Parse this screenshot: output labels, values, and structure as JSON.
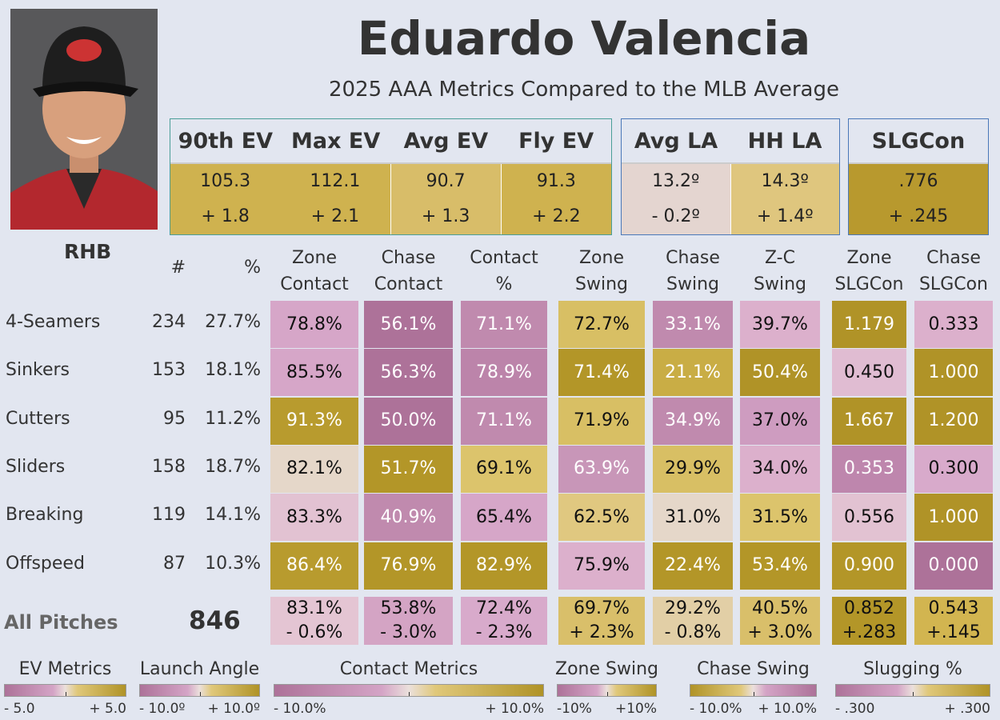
{
  "player": {
    "name": "Eduardo Valencia",
    "subtitle": "2025 AAA Metrics Compared to the MLB Average",
    "bats": "RHB"
  },
  "summary": {
    "ev": {
      "headers": [
        "90th EV",
        "Max EV",
        "Avg EV",
        "Fly EV"
      ],
      "values": [
        "105.3",
        "112.1",
        "90.7",
        "91.3"
      ],
      "diffs": [
        "+ 1.8",
        "+ 2.1",
        "+ 1.3",
        "+ 2.2"
      ],
      "colors": [
        "#cfb24f",
        "#cfb24f",
        "#d8bd69",
        "#cfb24f"
      ]
    },
    "la": {
      "headers": [
        "Avg LA",
        "HH LA"
      ],
      "values": [
        "13.2º",
        "14.3º"
      ],
      "diffs": [
        "- 0.2º",
        "+ 1.4º"
      ],
      "colors": [
        "#e4d5d0",
        "#dfc67e"
      ]
    },
    "slg": {
      "headers": [
        "SLGCon"
      ],
      "values": [
        ".776"
      ],
      "diffs": [
        "+ .245"
      ],
      "colors": [
        "#b8992e"
      ]
    }
  },
  "table": {
    "count_header": "#",
    "pct_header": "%",
    "columns": [
      [
        "Zone",
        "Contact"
      ],
      [
        "Chase",
        "Contact"
      ],
      [
        "Contact",
        "%"
      ],
      [
        "Zone",
        "Swing"
      ],
      [
        "Chase",
        "Swing"
      ],
      [
        "Z-C",
        "Swing"
      ],
      [
        "Zone",
        "SLGCon"
      ],
      [
        "Chase",
        "SLGCon"
      ]
    ],
    "rows": [
      {
        "pitch": "4-Seamers",
        "count": "234",
        "pct": "27.7%",
        "values": [
          "78.8%",
          "56.1%",
          "71.1%",
          "72.7%",
          "33.1%",
          "39.7%",
          "1.179",
          "0.333"
        ],
        "colors": [
          "#d6a6c8",
          "#ad7299",
          "#c08aae",
          "#d8bf64",
          "#c08aae",
          "#dcb0cc",
          "#b09327",
          "#dcb0cc"
        ]
      },
      {
        "pitch": "Sinkers",
        "count": "153",
        "pct": "18.1%",
        "values": [
          "85.5%",
          "56.3%",
          "78.9%",
          "71.4%",
          "21.1%",
          "50.4%",
          "0.450",
          "1.000"
        ],
        "colors": [
          "#d6a6c8",
          "#ad7299",
          "#bc84aa",
          "#b39628",
          "#c9ad45",
          "#b09327",
          "#e0bcd2",
          "#b09327"
        ]
      },
      {
        "pitch": "Cutters",
        "count": "95",
        "pct": "11.2%",
        "values": [
          "91.3%",
          "50.0%",
          "71.1%",
          "71.9%",
          "34.9%",
          "37.0%",
          "1.667",
          "1.200"
        ],
        "colors": [
          "#b89b2e",
          "#ad7299",
          "#c08aae",
          "#d8bf64",
          "#c08aae",
          "#ce9cc0",
          "#b09327",
          "#b09327"
        ]
      },
      {
        "pitch": "Sliders",
        "count": "158",
        "pct": "18.7%",
        "values": [
          "82.1%",
          "51.7%",
          "69.1%",
          "63.9%",
          "29.9%",
          "34.0%",
          "0.353",
          "0.300"
        ],
        "colors": [
          "#e5d7c9",
          "#b39628",
          "#dcc46c",
          "#c896b8",
          "#d8bf64",
          "#dcb0cc",
          "#be86ad",
          "#d8aacb"
        ]
      },
      {
        "pitch": "Breaking",
        "count": "119",
        "pct": "14.1%",
        "values": [
          "83.3%",
          "40.9%",
          "65.4%",
          "62.5%",
          "31.0%",
          "31.5%",
          "0.556",
          "1.000"
        ],
        "colors": [
          "#e2c2d2",
          "#c08aae",
          "#d6a6c8",
          "#e0c880",
          "#e5d7c9",
          "#dcc46c",
          "#e2c2d2",
          "#b09327"
        ]
      },
      {
        "pitch": "Offspeed",
        "count": "87",
        "pct": "10.3%",
        "values": [
          "86.4%",
          "76.9%",
          "82.9%",
          "75.9%",
          "22.4%",
          "53.4%",
          "0.900",
          "0.000"
        ],
        "colors": [
          "#b89b2e",
          "#b39628",
          "#b39628",
          "#dcb0cc",
          "#b39628",
          "#b39628",
          "#b39628",
          "#ad7299"
        ]
      }
    ],
    "total": {
      "label": "All Pitches",
      "count": "846",
      "values": [
        "83.1%",
        "53.8%",
        "72.4%",
        "69.7%",
        "29.2%",
        "40.5%",
        "0.852",
        "0.543"
      ],
      "diffs": [
        "- 0.6%",
        "- 3.0%",
        "- 2.3%",
        "+ 2.3%",
        "- 0.8%",
        "+ 3.0%",
        "+.283",
        "+.145"
      ],
      "colors": [
        "#e4c5d3",
        "#d4a4c4",
        "#d8aacb",
        "#d9bf6a",
        "#e2cfa6",
        "#d9bf6a",
        "#b39628",
        "#d2b550"
      ]
    }
  },
  "legends": [
    {
      "title": "EV Metrics",
      "min": "- 5.0",
      "max": "+ 5.0",
      "reverse": false
    },
    {
      "title": "Launch Angle",
      "min": "- 10.0º",
      "max": "+ 10.0º",
      "reverse": false
    },
    {
      "title": "Contact Metrics",
      "min": "- 10.0%",
      "max": "+ 10.0%",
      "reverse": false
    },
    {
      "title": "Zone Swing",
      "min": "-10%",
      "max": "+10%",
      "reverse": false
    },
    {
      "title": "Chase Swing",
      "min": "- 10.0%",
      "max": "+ 10.0%",
      "reverse": true
    },
    {
      "title": "Slugging %",
      "min": "- .300",
      "max": "+ .300",
      "reverse": false
    }
  ],
  "chart_data": {
    "type": "table",
    "title": "Eduardo Valencia — 2025 AAA Metrics Compared to the MLB Average",
    "categories": [
      "4-Seamers",
      "Sinkers",
      "Cutters",
      "Sliders",
      "Breaking",
      "Offspeed"
    ],
    "series": [
      {
        "name": "Zone Contact %",
        "values": [
          78.8,
          85.5,
          91.3,
          82.1,
          83.3,
          86.4
        ]
      },
      {
        "name": "Chase Contact %",
        "values": [
          56.1,
          56.3,
          50.0,
          51.7,
          40.9,
          76.9
        ]
      },
      {
        "name": "Contact %",
        "values": [
          71.1,
          78.9,
          71.1,
          69.1,
          65.4,
          82.9
        ]
      },
      {
        "name": "Zone Swing %",
        "values": [
          72.7,
          71.4,
          71.9,
          63.9,
          62.5,
          75.9
        ]
      },
      {
        "name": "Chase Swing %",
        "values": [
          33.1,
          21.1,
          34.9,
          29.9,
          31.0,
          22.4
        ]
      },
      {
        "name": "Z-C Swing %",
        "values": [
          39.7,
          50.4,
          37.0,
          34.0,
          31.5,
          53.4
        ]
      },
      {
        "name": "Zone SLGCon",
        "values": [
          1.179,
          0.45,
          1.667,
          0.353,
          0.556,
          0.9
        ]
      },
      {
        "name": "Chase SLGCon",
        "values": [
          0.333,
          1.0,
          1.2,
          0.3,
          1.0,
          0.0
        ]
      }
    ]
  }
}
